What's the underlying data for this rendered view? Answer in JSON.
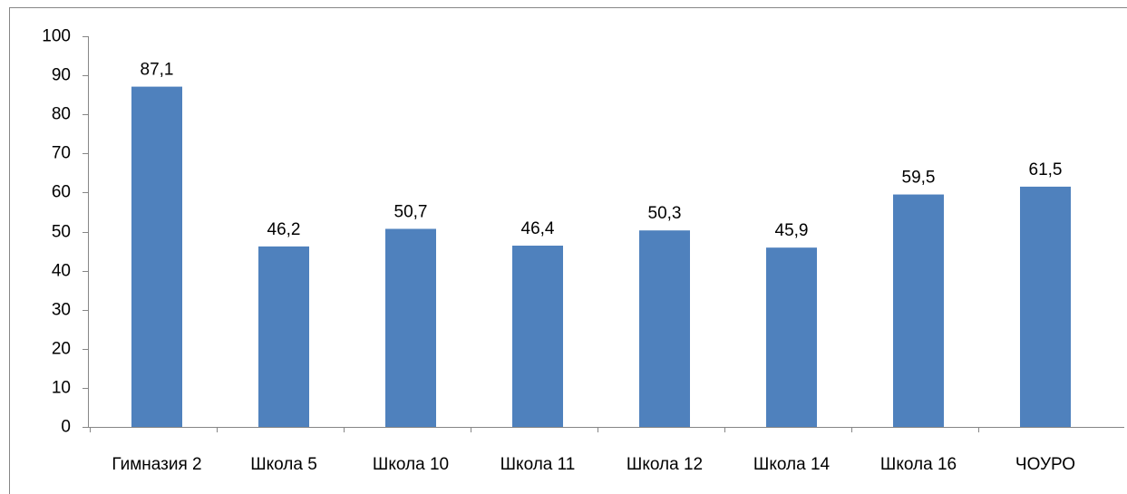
{
  "chart_data": {
    "type": "bar",
    "categories": [
      "Гимназия 2",
      "Школа 5",
      "Школа 10",
      "Школа 11",
      "Школа 12",
      "Школа 14",
      "Школа 16",
      "ЧОУРО"
    ],
    "values": [
      87.1,
      46.2,
      50.7,
      46.4,
      50.3,
      45.9,
      59.5,
      61.5
    ],
    "value_labels": [
      "87,1",
      "46,2",
      "50,7",
      "46,4",
      "50,3",
      "45,9",
      "59,5",
      "61,5"
    ],
    "color": "#4f81bd",
    "ylim": [
      0,
      100
    ],
    "yticks": [
      0,
      10,
      20,
      30,
      40,
      50,
      60,
      70,
      80,
      90,
      100
    ],
    "grid": false
  }
}
